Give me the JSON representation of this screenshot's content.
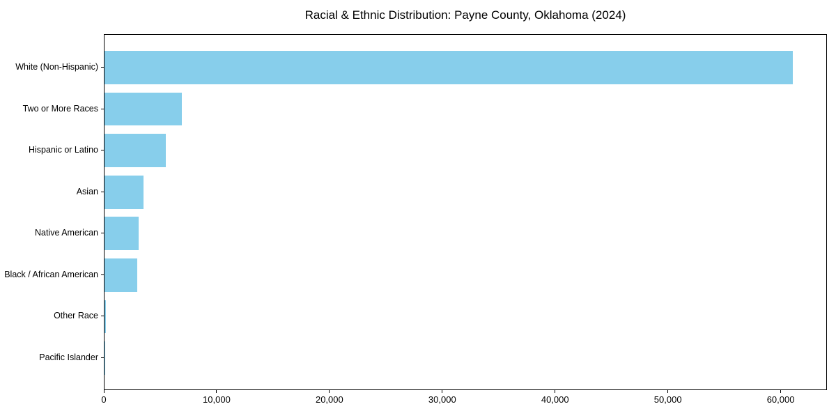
{
  "figure": {
    "background": "#ffffff"
  },
  "chart_data": {
    "type": "bar",
    "orientation": "horizontal",
    "title": "Racial & Ethnic Distribution: Payne County, Oklahoma (2024)",
    "categories": [
      "White (Non-Hispanic)",
      "Two or More Races",
      "Hispanic or Latino",
      "Asian",
      "Native American",
      "Black / African American",
      "Other Race",
      "Pacific Islander"
    ],
    "values": [
      61000,
      6870,
      5450,
      3440,
      3030,
      2920,
      150,
      40
    ],
    "xlabel": "",
    "ylabel": "",
    "xlim": [
      0,
      64100
    ],
    "x_ticks": [
      0,
      10000,
      20000,
      30000,
      40000,
      50000,
      60000
    ],
    "x_tick_labels": [
      "0",
      "10,000",
      "20,000",
      "30,000",
      "40,000",
      "50,000",
      "60,000"
    ],
    "bar_color": "#87CEEB",
    "axis_color": "#000000",
    "text_color": "#000000",
    "grid": false,
    "legend_position": "none"
  }
}
